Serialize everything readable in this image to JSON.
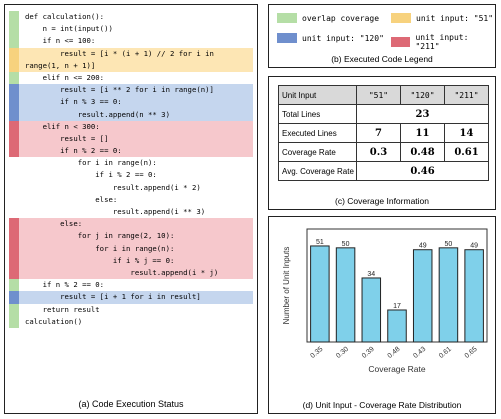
{
  "colors": {
    "overlap": "#b5dea6",
    "input_51": "#fde6b4",
    "input_120": "#c5d6ee",
    "input_211": "#f6c8cc",
    "bar_51": "#f7d27e",
    "bar_120": "#6f8fcd",
    "bar_211": "#dd6975",
    "chart_bar": "#7fd0ea"
  },
  "panel_a": {
    "caption": "(a) Code Execution Status",
    "lines": [
      {
        "code": "def calculation():",
        "bar": "overlap",
        "bg": "none"
      },
      {
        "code": "    n = int(input())",
        "bar": "overlap",
        "bg": "none"
      },
      {
        "code": "    if n <= 100:",
        "bar": "overlap",
        "bg": "none"
      },
      {
        "code": "        result = [i * (i + 1) // 2 for i in",
        "bar": "input_51",
        "bg": "input_51"
      },
      {
        "code": "range(1, n + 1)]",
        "bar": "input_51",
        "bg": "input_51"
      },
      {
        "code": "    elif n <= 200:",
        "bar": "overlap",
        "bg": "none"
      },
      {
        "code": "        result = [i ** 2 for i in range(n)]",
        "bar": "input_120",
        "bg": "input_120"
      },
      {
        "code": "        if n % 3 == 0:",
        "bar": "input_120",
        "bg": "input_120"
      },
      {
        "code": "            result.append(n ** 3)",
        "bar": "input_120",
        "bg": "input_120"
      },
      {
        "code": "    elif n < 300:",
        "bar": "input_211",
        "bg": "input_211"
      },
      {
        "code": "        result = []",
        "bar": "input_211",
        "bg": "input_211"
      },
      {
        "code": "        if n % 2 == 0:",
        "bar": "input_211",
        "bg": "input_211"
      },
      {
        "code": "            for i in range(n):",
        "bar": "none",
        "bg": "none"
      },
      {
        "code": "                if i % 2 == 0:",
        "bar": "none",
        "bg": "none"
      },
      {
        "code": "                    result.append(i * 2)",
        "bar": "none",
        "bg": "none"
      },
      {
        "code": "                else:",
        "bar": "none",
        "bg": "none"
      },
      {
        "code": "                    result.append(i ** 3)",
        "bar": "none",
        "bg": "none"
      },
      {
        "code": "        else:",
        "bar": "input_211",
        "bg": "input_211"
      },
      {
        "code": "            for j in range(2, 10):",
        "bar": "input_211",
        "bg": "input_211"
      },
      {
        "code": "                for i in range(n):",
        "bar": "input_211",
        "bg": "input_211"
      },
      {
        "code": "                    if i % j == 0:",
        "bar": "input_211",
        "bg": "input_211"
      },
      {
        "code": "                        result.append(i * j)",
        "bar": "input_211",
        "bg": "input_211"
      },
      {
        "code": "    if n % 2 == 0:",
        "bar": "overlap",
        "bg": "none"
      },
      {
        "code": "        result = [i + 1 for i in result]",
        "bar": "input_120",
        "bg": "input_120"
      },
      {
        "code": "    return result",
        "bar": "overlap",
        "bg": "none"
      },
      {
        "code": "calculation()",
        "bar": "overlap",
        "bg": "none"
      }
    ]
  },
  "panel_b": {
    "caption": "(b) Executed Code Legend",
    "items": [
      {
        "label": "overlap coverage",
        "color": "overlap"
      },
      {
        "label": "unit input: \"51\"",
        "color": "bar_51"
      },
      {
        "label": "unit input: \"120\"",
        "color": "bar_120"
      },
      {
        "label": "unit input: \"211\"",
        "color": "bar_211"
      }
    ]
  },
  "panel_c": {
    "caption": "(c) Coverage Information",
    "header": [
      "Unit Input",
      "\"51\"",
      "\"120\"",
      "\"211\""
    ],
    "total_lines": {
      "label": "Total Lines",
      "value": "23"
    },
    "executed_lines": {
      "label": "Executed Lines",
      "values": [
        "7",
        "11",
        "14"
      ]
    },
    "coverage_rate": {
      "label": "Coverage Rate",
      "values": [
        "0.3",
        "0.48",
        "0.61"
      ]
    },
    "avg_coverage": {
      "label": "Avg. Coverage Rate",
      "value": "0.46"
    }
  },
  "panel_d": {
    "caption": "(d) Unit Input - Coverage Rate Distribution"
  },
  "chart_data": {
    "type": "bar",
    "categories": [
      "0.35",
      "0.30",
      "0.39",
      "0.48",
      "0.43",
      "0.61",
      "0.65"
    ],
    "values": [
      51,
      50,
      34,
      17,
      49,
      50,
      49
    ],
    "xlabel": "Coverage Rate",
    "ylabel": "Number of Unit Inputs",
    "ylim": [
      0,
      60
    ],
    "grid": false,
    "legend": "none"
  }
}
